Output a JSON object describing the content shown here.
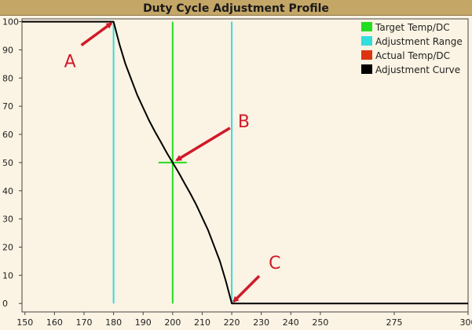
{
  "title": "Duty Cycle Adjustment Profile",
  "chart_data": {
    "type": "line",
    "title": "Duty Cycle Adjustment Profile",
    "xlabel": "",
    "ylabel": "",
    "xlim": [
      149,
      300
    ],
    "ylim": [
      -3,
      101
    ],
    "x_ticks": [
      150,
      160,
      170,
      180,
      190,
      200,
      210,
      220,
      230,
      240,
      250,
      275,
      300
    ],
    "x_tick_labels": [
      "150",
      "160",
      "170",
      "180",
      "190",
      "200",
      "210",
      "220",
      "230",
      "240",
      "250",
      "275",
      "300"
    ],
    "y_ticks": [
      0,
      10,
      20,
      30,
      40,
      50,
      60,
      70,
      80,
      90,
      100
    ],
    "y_tick_labels": [
      "0",
      "10",
      "20",
      "30",
      "40",
      "50",
      "60",
      "70",
      "80",
      "90",
      "100"
    ],
    "grid": false,
    "legend_position": "top-right",
    "series": [
      {
        "name": "Adjustment Curve",
        "color": "#000000",
        "x": [
          149,
          180,
          182,
          184,
          186,
          188,
          190,
          192,
          194,
          196,
          198,
          200,
          202,
          204,
          206,
          208,
          210,
          212,
          214,
          216,
          218,
          220,
          300
        ],
        "y": [
          100,
          100,
          92,
          85,
          79.5,
          74,
          69.5,
          65,
          61,
          57.3,
          53.5,
          50,
          46.5,
          42.7,
          39,
          35,
          30.5,
          26,
          20.5,
          15,
          8,
          0,
          0
        ]
      },
      {
        "name": "Target Temp/DC",
        "color": "#22dd22",
        "vertical_x": 200,
        "point": [
          200,
          50
        ]
      },
      {
        "name": "Adjustment Range",
        "color": "#33dddd",
        "vertical_x": [
          180,
          220
        ]
      },
      {
        "name": "Actual Temp/DC",
        "color": "#dd3311"
      }
    ],
    "annotations": [
      {
        "label": "A",
        "target": [
          180,
          100
        ]
      },
      {
        "label": "B",
        "target": [
          200,
          50
        ]
      },
      {
        "label": "C",
        "target": [
          220,
          0
        ]
      }
    ]
  }
}
